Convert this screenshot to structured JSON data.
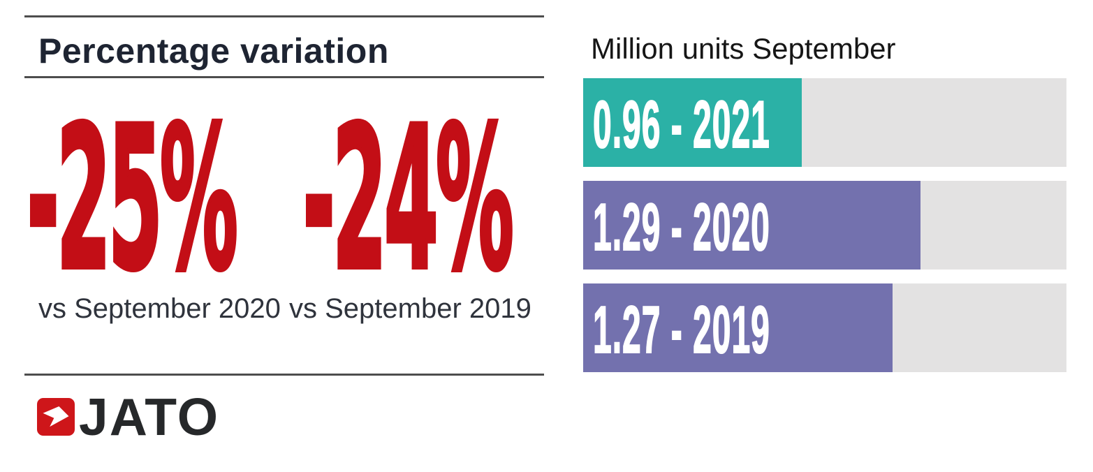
{
  "left_panel": {
    "title": "Percentage variation",
    "stats": [
      {
        "value": "-25%",
        "label": "vs September 2020"
      },
      {
        "value": "-24%",
        "label": "vs September 2019"
      }
    ],
    "brand": {
      "name": "JATO",
      "logo_icon": "jato-arrow-icon"
    }
  },
  "chart_data": {
    "type": "bar",
    "orientation": "horizontal",
    "title": "Million units September",
    "categories": [
      "2021",
      "2020",
      "2019"
    ],
    "values": [
      0.96,
      1.29,
      1.27
    ],
    "bar_labels": [
      "0.96 - 2021",
      "1.29 - 2020",
      "1.27 - 2019"
    ],
    "bar_colors": [
      "#2bb1a6",
      "#7371ae",
      "#7371ae"
    ],
    "track_color": "#e3e2e2",
    "bar_fractions": [
      0.452,
      0.698,
      0.64
    ],
    "grid": false,
    "legend": false
  },
  "colors": {
    "accent_red": "#c30e16",
    "logo_red": "#ce161a",
    "title_navy": "#1e2432",
    "rule_gray": "#4d4d4d"
  }
}
